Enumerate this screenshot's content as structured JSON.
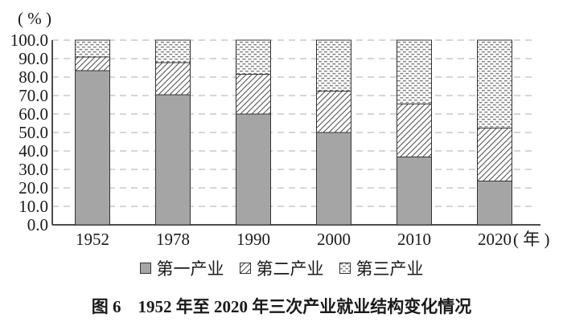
{
  "figure": {
    "caption": "图 6　1952 年至 2020 年三次产业就业结构变化情况"
  },
  "chart_data": {
    "type": "bar",
    "stacked": true,
    "title": "图 6　1952 年至 2020 年三次产业就业结构变化情况",
    "y_axis_label": "( % )",
    "x_unit": "( 年 )",
    "xlabel": "",
    "ylabel": "%",
    "ylim": [
      0,
      100
    ],
    "y_tick_labels": [
      "100.0",
      "90.0",
      "80.0",
      "70.0",
      "60.0",
      "50.0",
      "40.0",
      "30.0",
      "20.0",
      "10.0",
      "0.0"
    ],
    "grid": "dashed-horizontal",
    "legend_position": "bottom",
    "categories": [
      "1952",
      "1978",
      "1990",
      "2000",
      "2010",
      "2020"
    ],
    "series": [
      {
        "name": "第一产业",
        "pattern": "solid-gray",
        "values": [
          83.5,
          70.5,
          60.1,
          50.0,
          36.7,
          23.6
        ]
      },
      {
        "name": "第二产业",
        "pattern": "diagonal-hatch",
        "values": [
          7.4,
          17.3,
          21.4,
          22.5,
          28.7,
          28.7
        ]
      },
      {
        "name": "第三产业",
        "pattern": "dotted",
        "values": [
          9.1,
          12.2,
          18.5,
          27.5,
          34.6,
          47.7
        ]
      }
    ],
    "colors": {
      "bar_fill": "#a5a5a5",
      "bar_stroke": "#333333",
      "hatch_line": "#4d4d4d",
      "dot_fill": "#808080",
      "grid": "#adadad",
      "axis": "#4d4d4d",
      "text": "#1a1a1a"
    }
  }
}
